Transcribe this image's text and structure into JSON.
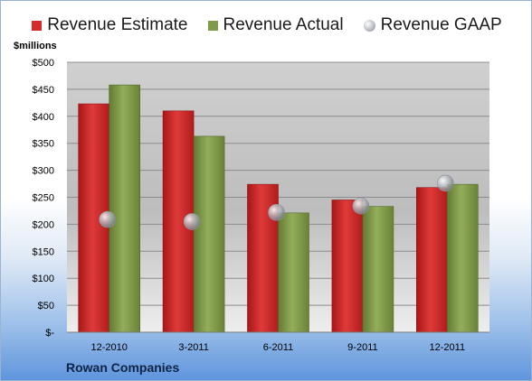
{
  "chart_data": {
    "type": "bar",
    "units_label": "$millions",
    "categories": [
      "12-2010",
      "3-2011",
      "6-2011",
      "9-2011",
      "12-2011"
    ],
    "series": [
      {
        "name": "Revenue Estimate",
        "kind": "bar",
        "color": "#d42a2a",
        "values": [
          423,
          410,
          274,
          245,
          268
        ]
      },
      {
        "name": "Revenue Actual",
        "kind": "bar",
        "color": "#7f9a48",
        "values": [
          458,
          363,
          221,
          233,
          274
        ]
      },
      {
        "name": "Revenue GAAP",
        "kind": "marker",
        "color": "#b8bcc4",
        "values": [
          209,
          205,
          222,
          234,
          276
        ]
      }
    ],
    "ylim": [
      0,
      500
    ],
    "ytick_labels": [
      "$-",
      "$50",
      "$100",
      "$150",
      "$200",
      "$250",
      "$300",
      "$350",
      "$400",
      "$450",
      "$500"
    ],
    "grid": true,
    "legend_position": "top",
    "company": "Rowan Companies"
  }
}
